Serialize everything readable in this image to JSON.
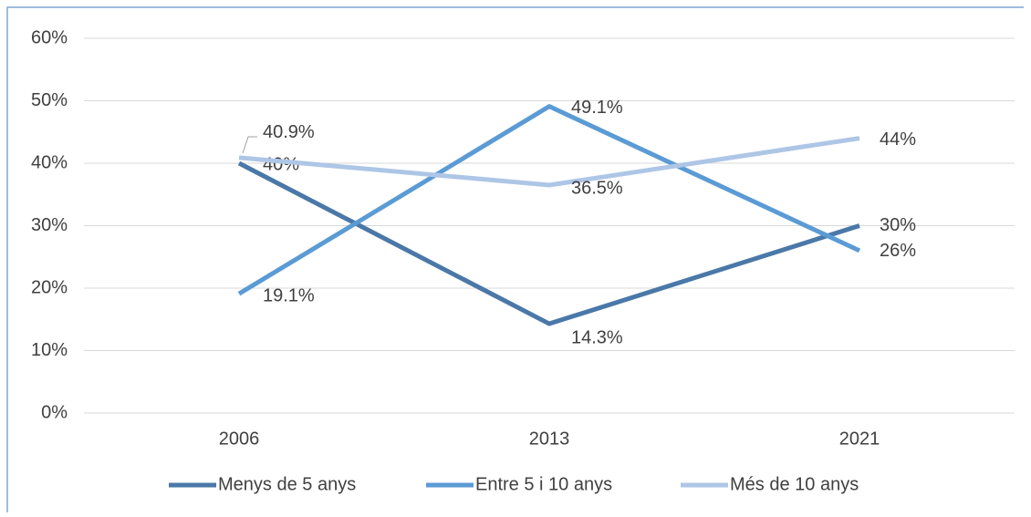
{
  "chart_data": {
    "type": "line",
    "categories": [
      "2006",
      "2013",
      "2021"
    ],
    "series": [
      {
        "name": "Menys de 5 anys",
        "color": "#4a78a8",
        "values": [
          40,
          14.3,
          30
        ],
        "value_labels": [
          "40%",
          "14.3%",
          "30%"
        ]
      },
      {
        "name": "Entre 5 i 10 anys",
        "color": "#5b9bd5",
        "values": [
          19.1,
          49.1,
          26
        ],
        "value_labels": [
          "19.1%",
          "49.1%",
          "26%"
        ]
      },
      {
        "name": "Més de 10 anys",
        "color": "#aec6e6",
        "values": [
          40.9,
          36.5,
          44
        ],
        "value_labels": [
          "40.9%",
          "36.5%",
          "44%"
        ]
      }
    ],
    "ylim": [
      0,
      60
    ],
    "yticks": [
      {
        "value": 0,
        "label": "0%"
      },
      {
        "value": 10,
        "label": "10%"
      },
      {
        "value": 20,
        "label": "20%"
      },
      {
        "value": 30,
        "label": "30%"
      },
      {
        "value": 40,
        "label": "40%"
      },
      {
        "value": 50,
        "label": "50%"
      },
      {
        "value": 60,
        "label": "60%"
      }
    ],
    "grid": true,
    "legend": "bottom"
  }
}
